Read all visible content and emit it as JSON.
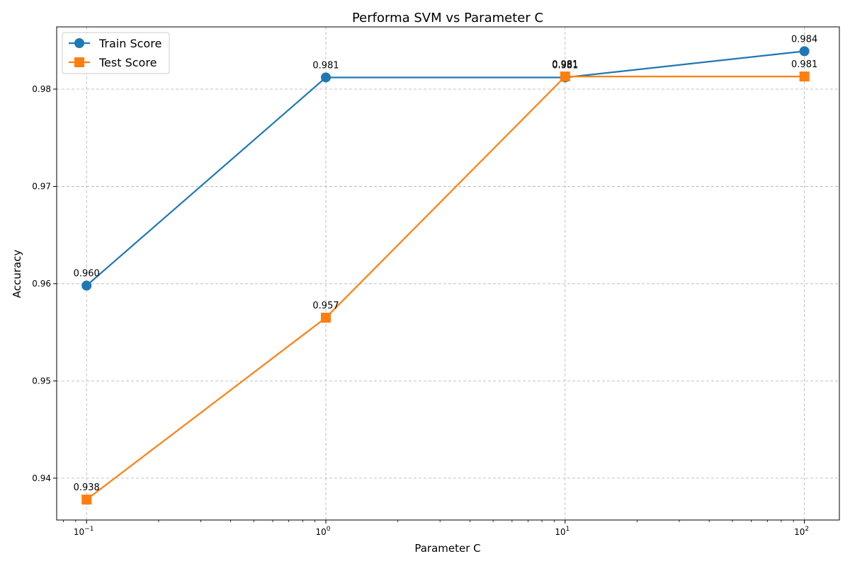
{
  "chart_data": {
    "type": "line",
    "title": "Performa SVM vs Parameter C",
    "xlabel": "Parameter C",
    "ylabel": "Accuracy",
    "x_scale": "log",
    "x": [
      0.1,
      1,
      10,
      100
    ],
    "x_tick_labels": [
      {
        "base": "10",
        "exp": "−1"
      },
      {
        "base": "10",
        "exp": "0"
      },
      {
        "base": "10",
        "exp": "1"
      },
      {
        "base": "10",
        "exp": "2"
      }
    ],
    "xlim": [
      0.075,
      140
    ],
    "ylim": [
      0.9357,
      0.9864
    ],
    "y_ticks": [
      0.94,
      0.95,
      0.96,
      0.97,
      0.98
    ],
    "y_tick_labels": [
      "0.94",
      "0.95",
      "0.96",
      "0.97",
      "0.98"
    ],
    "grid": true,
    "legend_position": "top-left",
    "series": [
      {
        "name": "Train Score",
        "color": "#1f77b4",
        "marker": "circle",
        "values": [
          0.9598,
          0.9812,
          0.9812,
          0.9839
        ],
        "labels": [
          "0.960",
          "0.981",
          "0.981",
          "0.984"
        ]
      },
      {
        "name": "Test Score",
        "color": "#ff7f0e",
        "marker": "square",
        "values": [
          0.9378,
          0.9565,
          0.9813,
          0.9813
        ],
        "labels": [
          "0.938",
          "0.957",
          "0.981",
          "0.981"
        ]
      }
    ]
  }
}
